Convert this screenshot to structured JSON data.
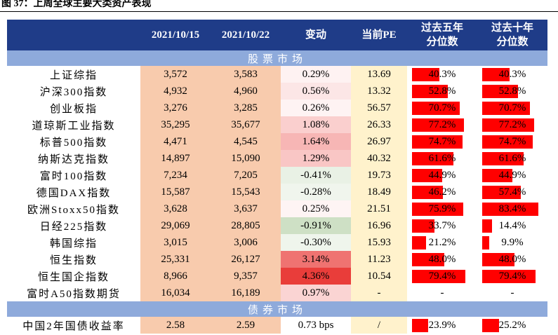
{
  "caption": "图 37：上周全球主要大类资产表现",
  "table": {
    "header": [
      "",
      "2021/10/15",
      "2021/10/22",
      "变动",
      "当前PE",
      [
        "过去五年",
        "分位数"
      ],
      [
        "过去十年",
        "分位数"
      ]
    ],
    "sections": [
      {
        "title": "股票市场",
        "rows": [
          [
            "上证综指",
            "3,572",
            "3,583",
            "0.29%",
            "13.69",
            "40.3%",
            "40.3%"
          ],
          [
            "沪深300指数",
            "4,932",
            "4,960",
            "0.56%",
            "13.32",
            "52.8%",
            "52.8%"
          ],
          [
            "创业板指",
            "3,276",
            "3,285",
            "0.26%",
            "56.57",
            "70.7%",
            "70.7%"
          ],
          [
            "道琼斯工业指数",
            "35,295",
            "35,677",
            "1.08%",
            "26.33",
            "77.2%",
            "77.2%"
          ],
          [
            "标普500指数",
            "4,471",
            "4,545",
            "1.64%",
            "26.97",
            "74.7%",
            "74.7%"
          ],
          [
            "纳斯达克指数",
            "14,897",
            "15,090",
            "1.29%",
            "40.32",
            "61.6%",
            "61.6%"
          ],
          [
            "富时100指数",
            "7,234",
            "7,205",
            "-0.41%",
            "19.73",
            "44.9%",
            "44.9%"
          ],
          [
            "德国DAX指数",
            "15,587",
            "15,543",
            "-0.28%",
            "18.49",
            "46.2%",
            "57.4%"
          ],
          [
            "欧洲Stoxx50指数",
            "3,628",
            "3,637",
            "0.25%",
            "21.51",
            "75.9%",
            "83.4%"
          ],
          [
            "日经225指数",
            "29,069",
            "28,805",
            "-0.91%",
            "16.96",
            "33.7%",
            "14.4%"
          ],
          [
            "韩国综指",
            "3,015",
            "3,006",
            "-0.30%",
            "15.93",
            "21.2%",
            "9.9%"
          ],
          [
            "恒生指数",
            "25,331",
            "26,127",
            "3.14%",
            "11.23",
            "48.0%",
            "48.0%"
          ],
          [
            "恒生国企指数",
            "8,966",
            "9,357",
            "4.36%",
            "10.54",
            "79.4%",
            "79.4%"
          ],
          [
            "富时A50指数期货",
            "16,034",
            "16,189",
            "0.97%",
            "-",
            "-",
            "-"
          ]
        ]
      },
      {
        "title": "债券市场",
        "rows": [
          [
            "中国2年国债收益率",
            "2.58",
            "2.59",
            "0.73 bps",
            "/",
            "23.9%",
            "25.2%"
          ]
        ]
      }
    ]
  }
}
